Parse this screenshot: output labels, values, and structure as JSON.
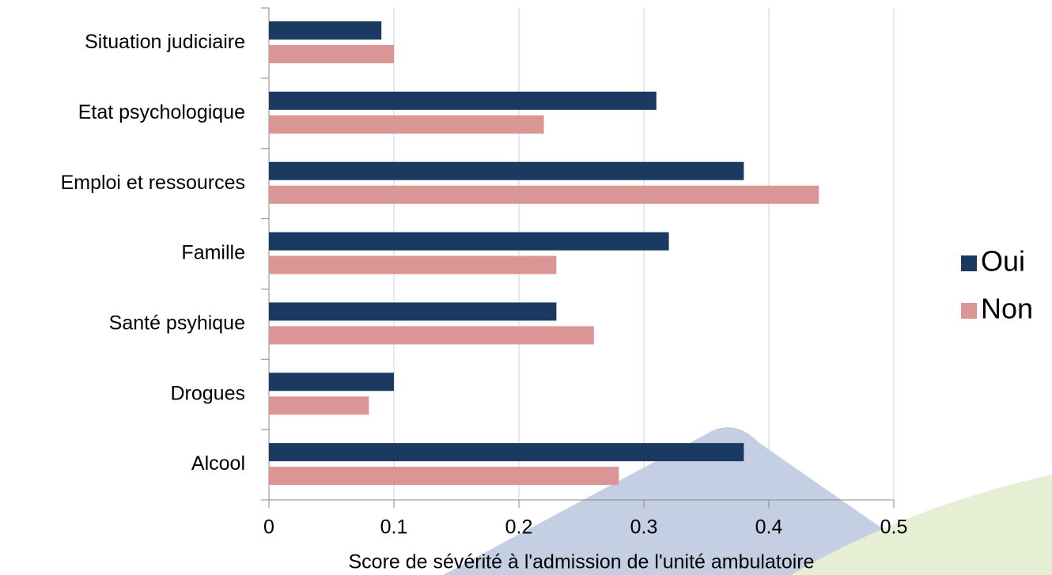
{
  "chart_data": {
    "type": "hbar",
    "x_label": "Score de sévérité à l'admission de l'unité ambulatoire",
    "categories": [
      "Situation judiciaire",
      "Etat psychologique",
      "Emploi et ressources",
      "Famille",
      "Santé psyhique",
      "Drogues",
      "Alcool"
    ],
    "series": [
      {
        "name": "Oui",
        "color": "#1b3a62",
        "values": [
          0.09,
          0.31,
          0.38,
          0.32,
          0.23,
          0.1,
          0.38
        ]
      },
      {
        "name": "Non",
        "color": "#d99694",
        "values": [
          0.1,
          0.22,
          0.44,
          0.23,
          0.26,
          0.08,
          0.28
        ]
      }
    ],
    "xlim": [
      0,
      0.5
    ],
    "xticks": [
      0,
      0.1,
      0.2,
      0.3,
      0.4,
      0.5
    ],
    "grid": true,
    "legend": "right"
  }
}
